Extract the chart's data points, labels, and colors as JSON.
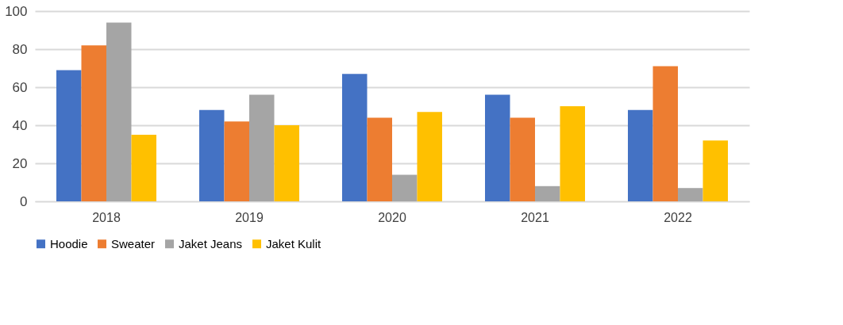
{
  "chart_data": {
    "type": "bar",
    "categories": [
      "2018",
      "2019",
      "2020",
      "2021",
      "2022"
    ],
    "series": [
      {
        "name": "Hoodie",
        "color": "#4472c4",
        "values": [
          69,
          48,
          67,
          56,
          48
        ]
      },
      {
        "name": "Sweater",
        "color": "#ed7d31",
        "values": [
          82,
          42,
          44,
          44,
          71
        ]
      },
      {
        "name": "Jaket Jeans",
        "color": "#a5a5a5",
        "values": [
          94,
          56,
          14,
          8,
          7
        ]
      },
      {
        "name": "Jaket Kulit",
        "color": "#ffc000",
        "values": [
          35,
          40,
          47,
          50,
          32
        ]
      }
    ],
    "ylim": [
      0,
      100
    ],
    "yticks": [
      0,
      20,
      40,
      60,
      80,
      100
    ],
    "grid": "y",
    "legend": "bottom"
  }
}
